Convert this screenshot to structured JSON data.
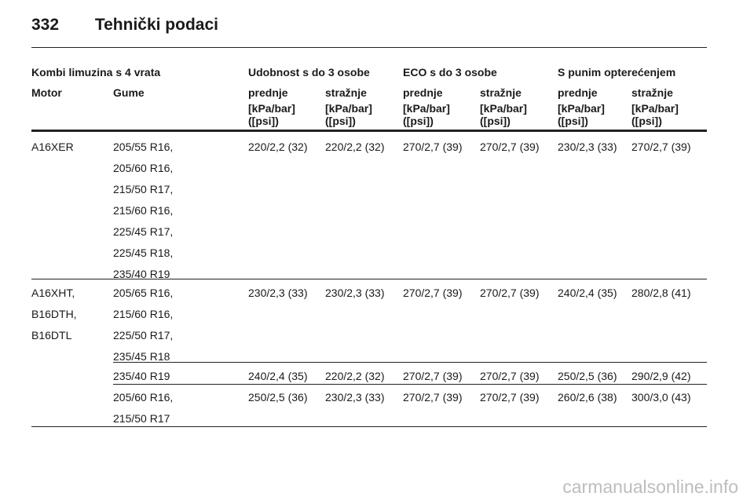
{
  "header": {
    "page_number": "332",
    "title": "Tehnički podaci"
  },
  "table": {
    "group_labels": {
      "vehicle": "Kombi limuzina s 4 vrata",
      "comfort": "Udobnost s do 3 osobe",
      "eco": "ECO s do 3 osobe",
      "full": "S punim opterećenjem"
    },
    "col_labels": {
      "motor": "Motor",
      "tyres": "Gume",
      "front": "prednje",
      "rear": "stražnje",
      "unit_line1": "[kPa/bar]",
      "unit_line2": "([psi])"
    },
    "rows": [
      {
        "motors": [
          "A16XER"
        ],
        "tyres": [
          "205/55 R16,",
          "205/60 R16,",
          "215/50 R17,",
          "215/60 R16,",
          "225/45 R17,",
          "225/45 R18,",
          "235/40 R19"
        ],
        "values": [
          "220/2,2 (32)",
          "220/2,2 (32)",
          "270/2,7 (39)",
          "270/2,7 (39)",
          "230/2,3 (33)",
          "270/2,7 (39)"
        ]
      },
      {
        "motors": [
          "A16XHT,",
          "B16DTH,",
          "B16DTL"
        ],
        "tyres": [
          "205/65 R16,",
          "215/60 R16,",
          "225/50 R17,",
          "235/45 R18"
        ],
        "values": [
          "230/2,3 (33)",
          "230/2,3 (33)",
          "270/2,7 (39)",
          "270/2,7 (39)",
          "240/2,4 (35)",
          "280/2,8 (41)"
        ]
      },
      {
        "motors": [],
        "tyres": [
          "235/40 R19"
        ],
        "values": [
          "240/2,4 (35)",
          "220/2,2 (32)",
          "270/2,7 (39)",
          "270/2,7 (39)",
          "250/2,5 (36)",
          "290/2,9 (42)"
        ]
      },
      {
        "motors": [],
        "tyres": [
          "205/60 R16,",
          "215/50 R17"
        ],
        "values": [
          "250/2,5 (36)",
          "230/2,3 (33)",
          "270/2,7 (39)",
          "270/2,7 (39)",
          "260/2,6 (38)",
          "300/3,0 (43)"
        ]
      }
    ]
  },
  "watermark": "carmanualsonline.info"
}
